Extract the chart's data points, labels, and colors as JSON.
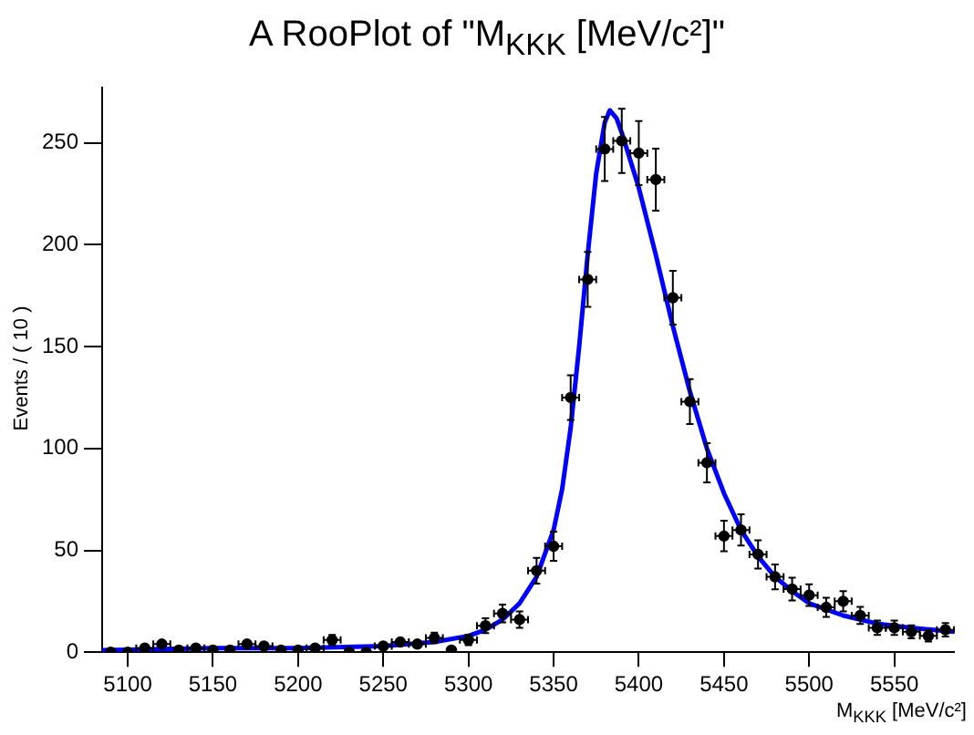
{
  "chart_data": {
    "type": "scatter",
    "title": "A RooPlot of \"M$_{KKK}$ [MeV/c²]\"",
    "xlabel": "M$_{KKK}$ [MeV/c²]",
    "ylabel": "Events / ( 10 )",
    "xlim": [
      5085,
      5585
    ],
    "xticks": [
      5100,
      5150,
      5200,
      5250,
      5300,
      5350,
      5400,
      5450,
      5500,
      5550
    ],
    "ylim": [
      0,
      277
    ],
    "yticks": [
      0,
      50,
      100,
      150,
      200,
      250
    ],
    "grid": false,
    "legend": false,
    "marker": "circle",
    "series": [
      {
        "color": "#000000",
        "x": [
          5090,
          5100,
          5110,
          5120,
          5130,
          5140,
          5150,
          5160,
          5170,
          5180,
          5190,
          5200,
          5210,
          5220,
          5230,
          5240,
          5250,
          5260,
          5270,
          5280,
          5290,
          5300,
          5310,
          5320,
          5330,
          5340,
          5350,
          5360,
          5370,
          5380,
          5390,
          5400,
          5410,
          5420,
          5430,
          5440,
          5450,
          5460,
          5470,
          5480,
          5490,
          5500,
          5510,
          5520,
          5530,
          5540,
          5550,
          5560,
          5570,
          5580
        ],
        "values": [
          0,
          0,
          2,
          4,
          1,
          2,
          1,
          1,
          4,
          3,
          1,
          1,
          2,
          6,
          0,
          0,
          3,
          5,
          4,
          7,
          1,
          6,
          13,
          19,
          16,
          40,
          52,
          125,
          183,
          247,
          251,
          245,
          232,
          174,
          123,
          93,
          57,
          60,
          48,
          37,
          31,
          28,
          22,
          25,
          18,
          12,
          12,
          10,
          8,
          11
        ],
        "errors": [
          null,
          null,
          null,
          null,
          null,
          null,
          null,
          null,
          null,
          null,
          null,
          null,
          null,
          2.5,
          null,
          null,
          null,
          null,
          null,
          2.6,
          null,
          2.5,
          3.6,
          4.4,
          4,
          6.3,
          7.2,
          11,
          13.5,
          15.7,
          15.8,
          15.7,
          15.2,
          13.2,
          11,
          9.6,
          7.5,
          7.7,
          6.9,
          6.1,
          5.6,
          5.3,
          4.7,
          5,
          4.2,
          3.5,
          3.5,
          3.2,
          2.8,
          3.3
        ],
        "xerrors": [
          null,
          null,
          5,
          5,
          null,
          5,
          null,
          null,
          5,
          5,
          null,
          null,
          5,
          5,
          null,
          null,
          5,
          5,
          5,
          5,
          null,
          5,
          5,
          5,
          5,
          5,
          5,
          5,
          5,
          5,
          5,
          5,
          5,
          5,
          5,
          5,
          5,
          5,
          5,
          5,
          5,
          5,
          5,
          5,
          5,
          5,
          5,
          5,
          5,
          5
        ]
      },
      {
        "type": "line",
        "color": "#0000ff",
        "marker": "none",
        "line_style": "solid",
        "x": [
          5085,
          5150,
          5200,
          5250,
          5280,
          5300,
          5310,
          5320,
          5330,
          5340,
          5350,
          5355,
          5360,
          5365,
          5370,
          5375,
          5380,
          5383,
          5387,
          5390,
          5400,
          5410,
          5420,
          5430,
          5440,
          5450,
          5460,
          5470,
          5480,
          5490,
          5500,
          5520,
          5540,
          5560,
          5585
        ],
        "values": [
          1,
          2,
          2,
          3,
          5,
          8,
          11,
          16,
          24,
          37,
          60,
          80,
          110,
          150,
          195,
          235,
          260,
          266,
          262,
          255,
          228,
          195,
          160,
          128,
          100,
          78,
          60,
          47,
          37,
          30,
          24,
          18,
          14,
          12,
          10
        ]
      }
    ]
  }
}
